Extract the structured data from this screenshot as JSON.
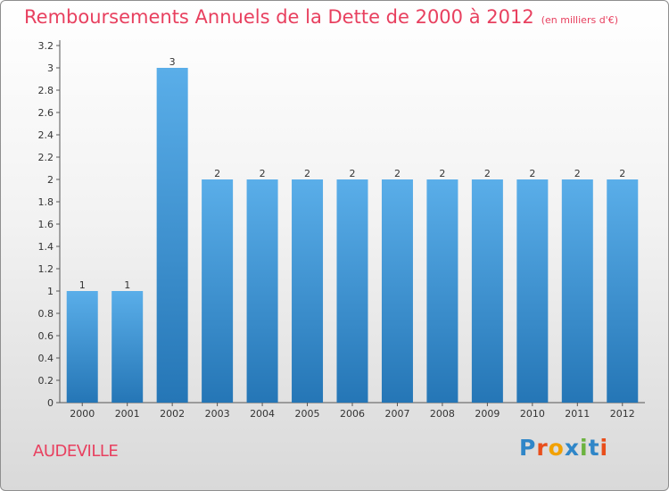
{
  "title": "Remboursements Annuels de la Dette de 2000 à 2012",
  "unit": "(en milliers d'€)",
  "place": "AUDEVILLE",
  "logo": {
    "letters": [
      "P",
      "r",
      "o",
      "x",
      "i",
      "t",
      "i"
    ],
    "colors": [
      "#2f86c8",
      "#e94e1b",
      "#f2a100",
      "#2f86c8",
      "#6cb33f",
      "#2f86c8",
      "#e94e1b"
    ]
  },
  "colors": {
    "title": "#e8405f",
    "bar_light": "#5aaee9",
    "bar_dark": "#2576b6",
    "axis_text": "#333333"
  },
  "chart_data": {
    "type": "bar",
    "categories": [
      "2000",
      "2001",
      "2002",
      "2003",
      "2004",
      "2005",
      "2006",
      "2007",
      "2008",
      "2009",
      "2010",
      "2011",
      "2012"
    ],
    "values": [
      1,
      1,
      3,
      2,
      2,
      2,
      2,
      2,
      2,
      2,
      2,
      2,
      2
    ],
    "data_labels": [
      "1",
      "1",
      "3",
      "2",
      "2",
      "2",
      "2",
      "2",
      "2",
      "2",
      "2",
      "2",
      "2"
    ],
    "yticks": [
      0,
      0.2,
      0.4,
      0.6,
      0.8,
      1,
      1.2,
      1.4,
      1.6,
      1.8,
      2,
      2.2,
      2.4,
      2.6,
      2.8,
      3,
      3.2
    ],
    "ytick_labels": [
      "0",
      "0.2",
      "0.4",
      "0.6",
      "0.8",
      "1",
      "1.2",
      "1.4",
      "1.6",
      "1.8",
      "2",
      "2.2",
      "2.4",
      "2.6",
      "2.8",
      "3",
      "3.2"
    ],
    "ylim": [
      0,
      3.2
    ],
    "grid": false,
    "xlabel": "",
    "ylabel": ""
  }
}
